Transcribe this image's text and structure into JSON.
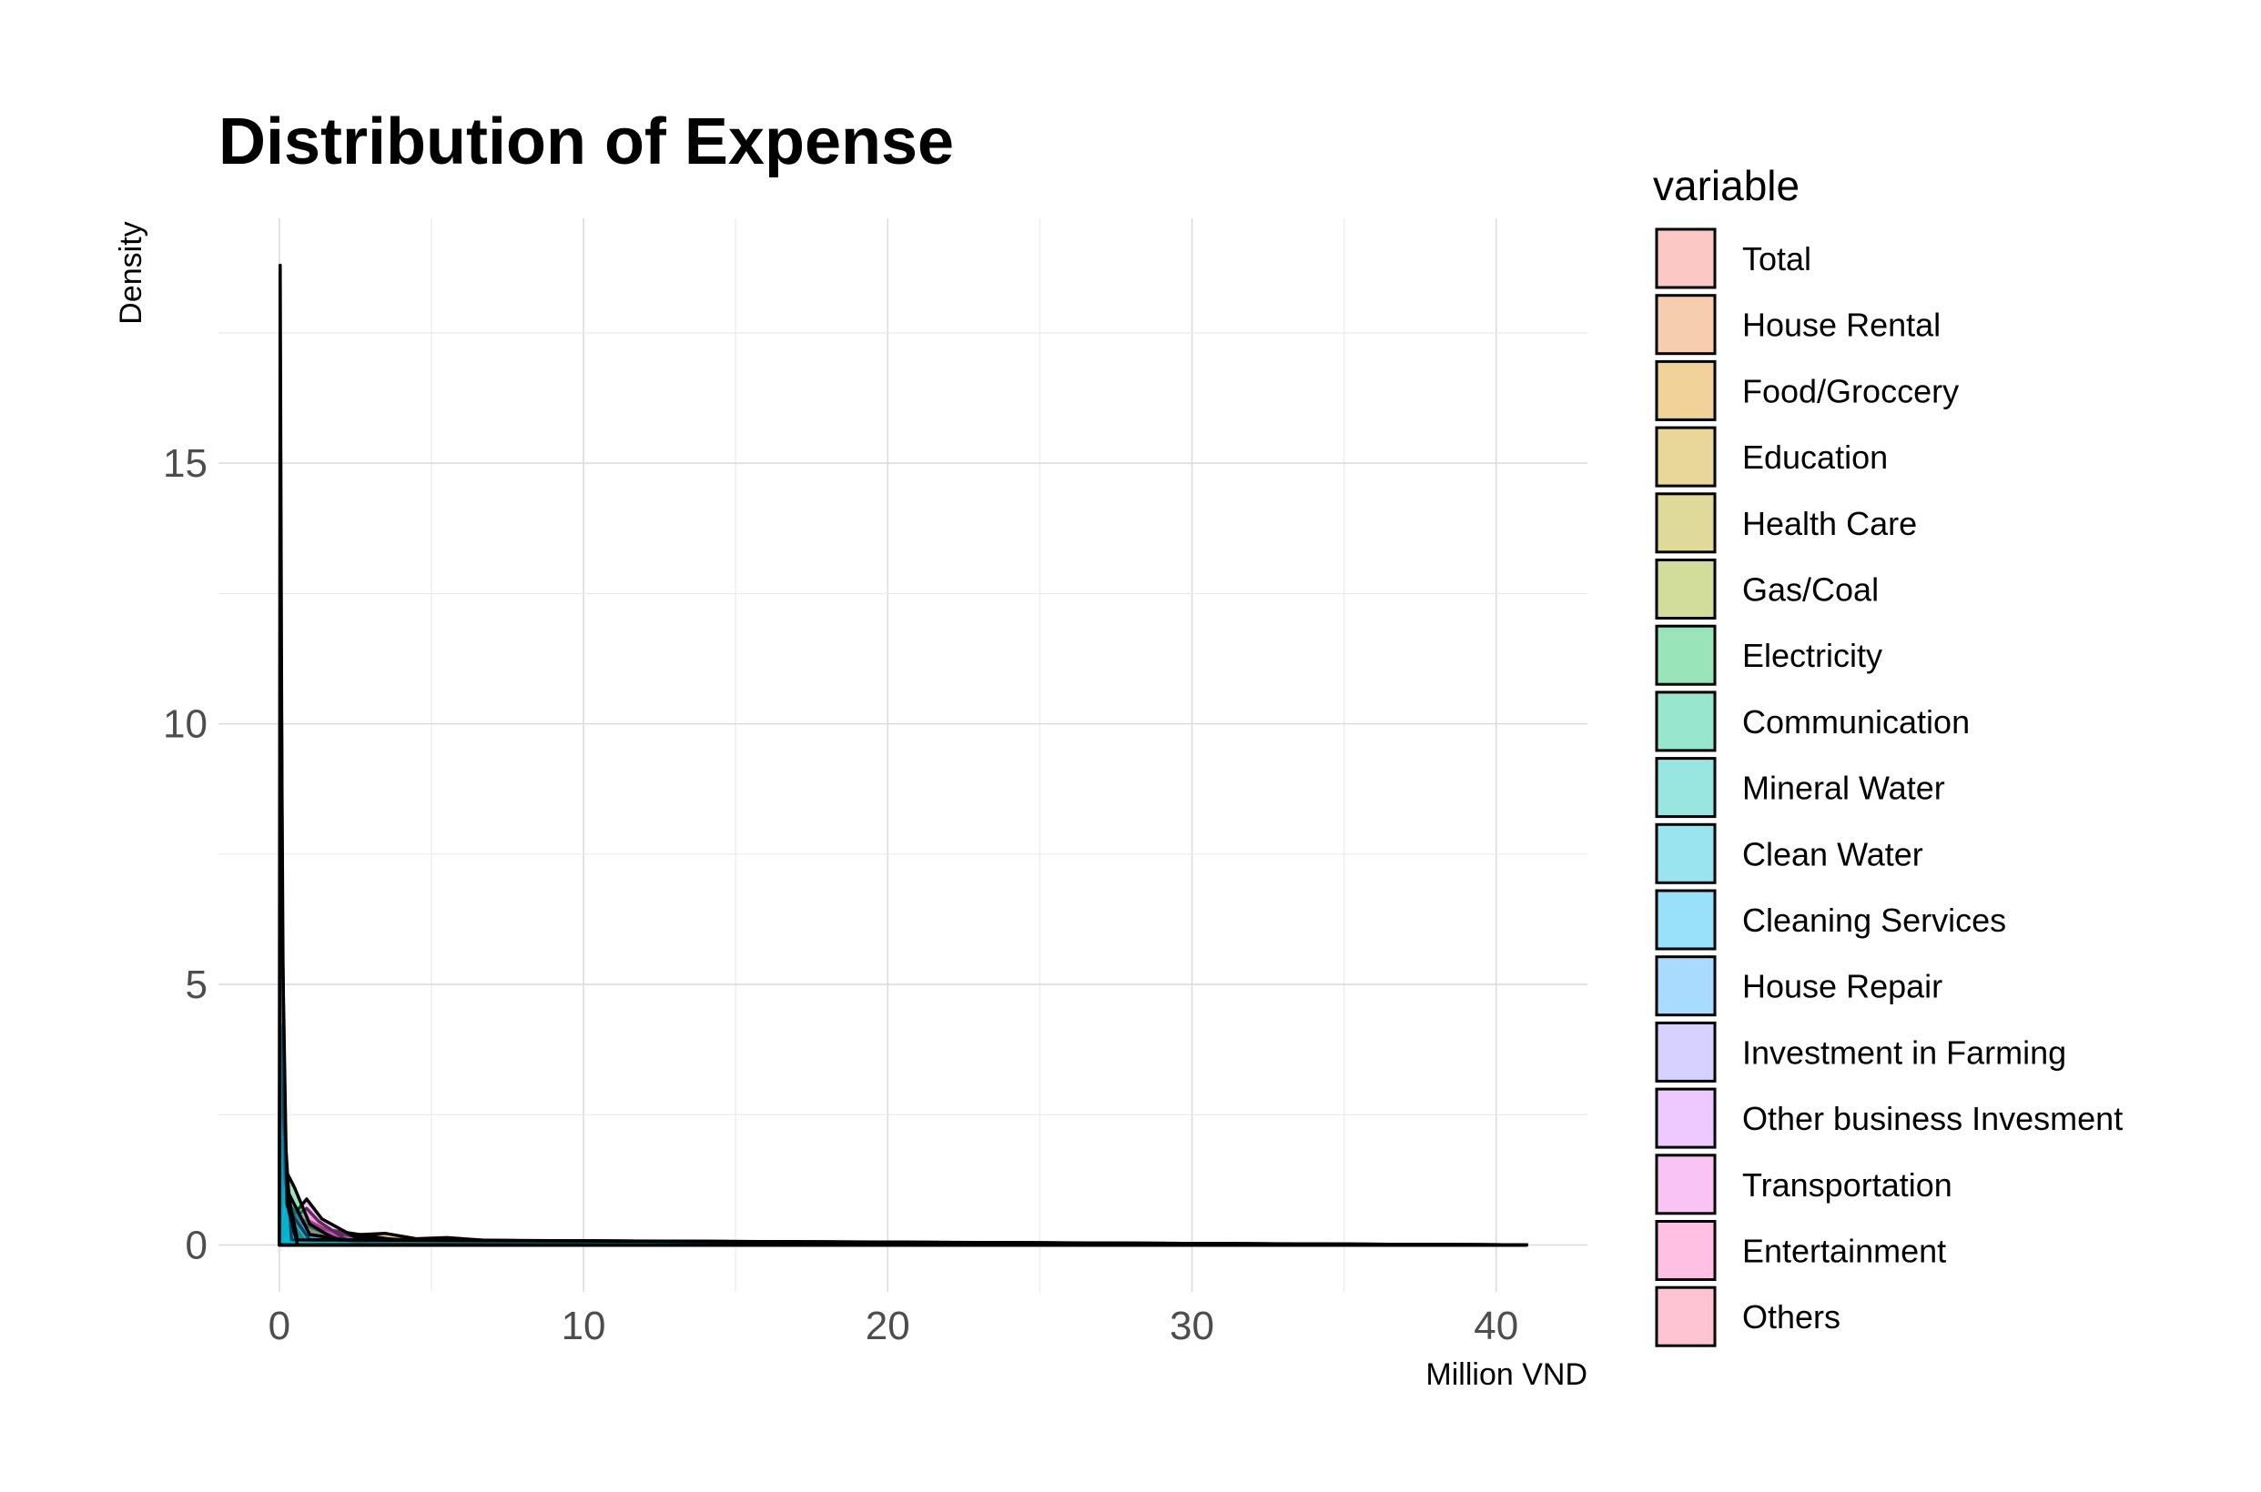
{
  "chart_data": {
    "type": "area",
    "title": "Distribution of Expense",
    "xlabel": "Million VND",
    "ylabel": "Density",
    "xlim": [
      -2,
      43
    ],
    "ylim": [
      -0.9,
      19.7
    ],
    "xticks": [
      0,
      10,
      20,
      30,
      40
    ],
    "xtick_labels": [
      "0",
      "10",
      "20",
      "30",
      "40"
    ],
    "yticks": [
      0,
      5,
      10,
      15
    ],
    "ytick_labels": [
      "0",
      "5",
      "10",
      "15"
    ],
    "grid": true,
    "legend_position": "right",
    "legend_title": "variable",
    "series": [
      {
        "name": "Total",
        "color": "#F8766D",
        "points": [
          [
            0,
            0
          ],
          [
            2,
            0.05
          ],
          [
            5,
            0.1
          ],
          [
            8,
            0.08
          ],
          [
            12,
            0.05
          ],
          [
            18,
            0.03
          ],
          [
            25,
            0.01
          ],
          [
            41,
            0
          ]
        ]
      },
      {
        "name": "House Rental",
        "color": "#EC8239",
        "points": [
          [
            0,
            0
          ],
          [
            2,
            0.1
          ],
          [
            4,
            0.08
          ],
          [
            8,
            0.04
          ],
          [
            12,
            0.02
          ],
          [
            20,
            0
          ],
          [
            41,
            0
          ]
        ]
      },
      {
        "name": "Food/Groccery",
        "color": "#DB8E00",
        "points": [
          [
            0,
            0
          ],
          [
            1,
            0.12
          ],
          [
            2,
            0.18
          ],
          [
            3.5,
            0.22
          ],
          [
            4.5,
            0.12
          ],
          [
            5.5,
            0.14
          ],
          [
            7,
            0.08
          ],
          [
            10,
            0.03
          ],
          [
            15,
            0.01
          ],
          [
            41,
            0
          ]
        ]
      },
      {
        "name": "Education",
        "color": "#C79800",
        "points": [
          [
            0,
            0
          ],
          [
            1,
            0.2
          ],
          [
            2.5,
            0.15
          ],
          [
            5,
            0.08
          ],
          [
            8,
            0.04
          ],
          [
            12,
            0.01
          ],
          [
            41,
            0
          ]
        ]
      },
      {
        "name": "Health Care",
        "color": "#AEA200",
        "points": [
          [
            0,
            0
          ],
          [
            0.3,
            0.8
          ],
          [
            0.8,
            0.4
          ],
          [
            2,
            0.1
          ],
          [
            5,
            0.03
          ],
          [
            41,
            0
          ]
        ]
      },
      {
        "name": "Gas/Coal",
        "color": "#8FAA00",
        "points": [
          [
            0,
            0
          ],
          [
            0.1,
            1.2
          ],
          [
            0.3,
            0.5
          ],
          [
            0.8,
            0.1
          ],
          [
            2,
            0
          ],
          [
            41,
            0
          ]
        ]
      },
      {
        "name": "Electricity",
        "color": "#00BC51",
        "points": [
          [
            0,
            0
          ],
          [
            0.15,
            1.5
          ],
          [
            0.5,
            1.1
          ],
          [
            1,
            0.4
          ],
          [
            2,
            0.05
          ],
          [
            41,
            0
          ]
        ]
      },
      {
        "name": "Communication",
        "color": "#00C087",
        "points": [
          [
            0,
            0
          ],
          [
            0.1,
            2.0
          ],
          [
            0.4,
            0.6
          ],
          [
            1,
            0.1
          ],
          [
            41,
            0
          ]
        ]
      },
      {
        "name": "Mineral Water",
        "color": "#00C1B2",
        "points": [
          [
            0,
            0
          ],
          [
            0.05,
            4.2
          ],
          [
            0.2,
            1.2
          ],
          [
            0.6,
            0.1
          ],
          [
            41,
            0
          ]
        ]
      },
      {
        "name": "Clean Water",
        "color": "#00BCD6",
        "points": [
          [
            0,
            0
          ],
          [
            0.05,
            12.5
          ],
          [
            0.15,
            2.5
          ],
          [
            0.4,
            0.1
          ],
          [
            41,
            0
          ]
        ]
      },
      {
        "name": "Cleaning Services",
        "color": "#00B3F2",
        "points": [
          [
            0,
            0
          ],
          [
            0.03,
            18.8
          ],
          [
            0.1,
            6.0
          ],
          [
            0.25,
            0.8
          ],
          [
            0.6,
            0
          ],
          [
            41,
            0
          ]
        ]
      },
      {
        "name": "House Repair",
        "color": "#29A3FF",
        "points": [
          [
            0,
            0
          ],
          [
            0.05,
            3.0
          ],
          [
            0.3,
            1.0
          ],
          [
            1,
            0.2
          ],
          [
            3,
            0.02
          ],
          [
            41,
            0
          ]
        ]
      },
      {
        "name": "Investment in Farming",
        "color": "#9C8DFF",
        "points": [
          [
            0,
            0
          ],
          [
            0.5,
            0.5
          ],
          [
            1.5,
            0.3
          ],
          [
            4,
            0.08
          ],
          [
            10,
            0.01
          ],
          [
            41,
            0
          ]
        ]
      },
      {
        "name": "Other business Invesment",
        "color": "#D277FF",
        "points": [
          [
            0,
            0
          ],
          [
            0.4,
            0.6
          ],
          [
            1.2,
            0.35
          ],
          [
            3,
            0.08
          ],
          [
            41,
            0
          ]
        ]
      },
      {
        "name": "Transportation",
        "color": "#F369E6",
        "points": [
          [
            0,
            0
          ],
          [
            0.5,
            0.6
          ],
          [
            0.9,
            0.88
          ],
          [
            1.4,
            0.5
          ],
          [
            2.5,
            0.15
          ],
          [
            4,
            0.03
          ],
          [
            41,
            0
          ]
        ]
      },
      {
        "name": "Entertainment",
        "color": "#FF62BC",
        "points": [
          [
            0,
            0
          ],
          [
            0.4,
            0.5
          ],
          [
            0.9,
            0.7
          ],
          [
            1.3,
            0.45
          ],
          [
            2.2,
            0.1
          ],
          [
            41,
            0
          ]
        ]
      },
      {
        "name": "Others",
        "color": "#FF6C91",
        "points": [
          [
            0,
            0
          ],
          [
            0.5,
            0.3
          ],
          [
            1,
            0.45
          ],
          [
            2,
            0.15
          ],
          [
            4,
            0.02
          ],
          [
            41,
            0
          ]
        ]
      }
    ]
  }
}
